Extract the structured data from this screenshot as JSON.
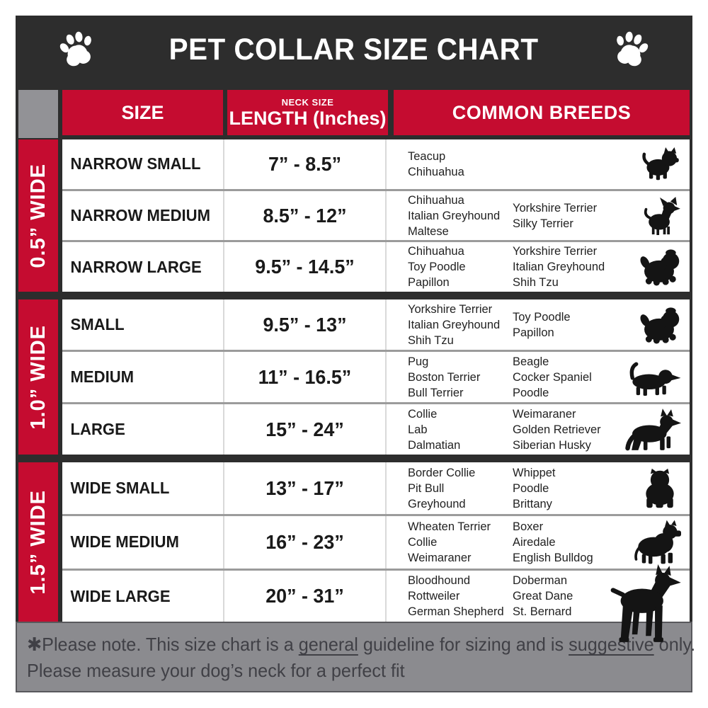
{
  "title_bar": {
    "title": "PET COLLAR SIZE CHART",
    "left_icon": "paw-icon",
    "right_icon": "paw-icon"
  },
  "header": {
    "size": "SIZE",
    "neck_sub": "NECK SIZE",
    "neck_main": "LENGTH (Inches)",
    "breeds": "COMMON BREEDS"
  },
  "groups": [
    {
      "width_label": "0.5” WIDE",
      "rows": [
        {
          "size": "NARROW SMALL",
          "neck": "7” - 8.5”",
          "breeds_col1": [
            "Teacup",
            "Chihuahua"
          ],
          "breeds_col2": [],
          "icon": "yorkshire-terrier-icon"
        },
        {
          "size": "NARROW MEDIUM",
          "neck": "8.5” - 12”",
          "breeds_col1": [
            "Chihuahua",
            "Italian Greyhound",
            "Maltese"
          ],
          "breeds_col2": [
            "Yorkshire Terrier",
            "Silky Terrier"
          ],
          "icon": "chihuahua-icon"
        },
        {
          "size": "NARROW LARGE",
          "neck": "9.5” - 14.5”",
          "breeds_col1": [
            "Chihuahua",
            "Toy Poodle",
            "Papillon"
          ],
          "breeds_col2": [
            "Yorkshire Terrier",
            "Italian Greyhound",
            "Shih Tzu"
          ],
          "icon": "shih-tzu-icon"
        }
      ]
    },
    {
      "width_label": "1.0” WIDE",
      "rows": [
        {
          "size": "SMALL",
          "neck": "9.5” - 13”",
          "breeds_col1": [
            "Yorkshire Terrier",
            "Italian Greyhound",
            "Shih Tzu"
          ],
          "breeds_col2": [
            "Toy Poodle",
            "Papillon"
          ],
          "icon": "shih-tzu-icon"
        },
        {
          "size": "MEDIUM",
          "neck": "11” - 16.5”",
          "breeds_col1": [
            "Pug",
            "Boston Terrier",
            "Bull Terrier"
          ],
          "breeds_col2": [
            "Beagle",
            "Cocker Spaniel",
            "Poodle"
          ],
          "icon": "beagle-icon"
        },
        {
          "size": "LARGE",
          "neck": "15” - 24”",
          "breeds_col1": [
            "Collie",
            "Lab",
            "Dalmatian"
          ],
          "breeds_col2": [
            "Weimaraner",
            "Golden Retriever",
            "Siberian Husky"
          ],
          "icon": "german-shepherd-icon"
        }
      ]
    },
    {
      "width_label": "1.5” WIDE",
      "rows": [
        {
          "size": "WIDE SMALL",
          "neck": "13” - 17”",
          "breeds_col1": [
            "Border Collie",
            "Pit Bull",
            "Greyhound"
          ],
          "breeds_col2": [
            "Whippet",
            "Poodle",
            "Brittany"
          ],
          "icon": "bulldog-icon"
        },
        {
          "size": "WIDE MEDIUM",
          "neck": "16” - 23”",
          "breeds_col1": [
            "Wheaten Terrier",
            "Collie",
            "Weimaraner"
          ],
          "breeds_col2": [
            "Boxer",
            "Airedale",
            "English Bulldog"
          ],
          "icon": "pit-bull-icon"
        },
        {
          "size": "WIDE LARGE",
          "neck": "20” - 31”",
          "breeds_col1": [
            "Bloodhound",
            "Rottweiler",
            "German Shepherd"
          ],
          "breeds_col2": [
            "Doberman",
            "Great Dane",
            "St. Bernard"
          ],
          "icon": "doberman-icon"
        }
      ]
    }
  ],
  "footer": {
    "lines": [
      {
        "segments": [
          {
            "text": "✱Please note. This size chart is a "
          },
          {
            "text": "general",
            "underline": true
          },
          {
            "text": " guideline for sizing and is "
          },
          {
            "text": "suggestive",
            "underline": true
          },
          {
            "text": " only."
          }
        ]
      },
      {
        "segments": [
          {
            "text": "Please measure your dog’s neck for a perfect fit"
          }
        ]
      }
    ]
  },
  "colors": {
    "accent_red": "#c50c30",
    "frame_dark": "#2d2d2d",
    "corner_gray": "#929296",
    "footer_gray": "#8b8b8f"
  }
}
